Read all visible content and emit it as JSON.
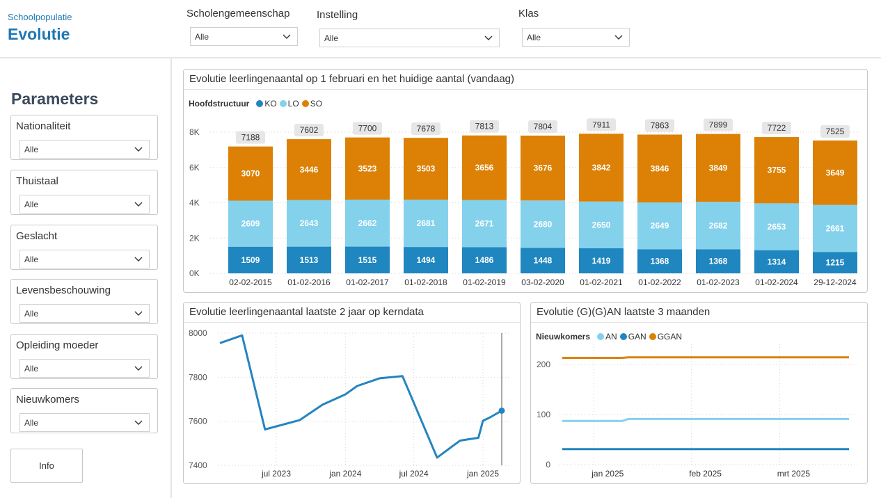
{
  "header": {
    "subtitle": "Schoolpopulatie",
    "title": "Evolutie",
    "filters": [
      {
        "label": "Scholengemeenschap",
        "value": "Alle"
      },
      {
        "label": "Instelling",
        "value": "Alle"
      },
      {
        "label": "Klas",
        "value": "Alle"
      }
    ]
  },
  "sidebar": {
    "title": "Parameters",
    "slicers": [
      {
        "label": "Nationaliteit",
        "value": "Alle"
      },
      {
        "label": "Thuistaal",
        "value": "Alle"
      },
      {
        "label": "Geslacht",
        "value": "Alle"
      },
      {
        "label": "Levensbeschouwing",
        "value": "Alle"
      },
      {
        "label": "Opleiding moeder",
        "value": "Alle"
      },
      {
        "label": "Nieuwkomers",
        "value": "Alle"
      }
    ],
    "info_label": "Info"
  },
  "colors": {
    "KO": "#1f86c0",
    "LO": "#84d1ec",
    "SO": "#dc8105",
    "line": "#2484c1"
  },
  "chart_data": [
    {
      "type": "bar",
      "stacked": true,
      "title": "Evolutie leerlingenaantal op 1 februari en het huidige aantal (vandaag)",
      "legend_title": "Hoofdstructuur",
      "categories": [
        "02-02-2015",
        "01-02-2016",
        "01-02-2017",
        "01-02-2018",
        "01-02-2019",
        "03-02-2020",
        "01-02-2021",
        "01-02-2022",
        "01-02-2023",
        "01-02-2024",
        "29-12-2024"
      ],
      "series": [
        {
          "name": "KO",
          "values": [
            1509,
            1513,
            1515,
            1494,
            1486,
            1448,
            1419,
            1368,
            1368,
            1314,
            1215
          ]
        },
        {
          "name": "LO",
          "values": [
            2609,
            2643,
            2662,
            2681,
            2671,
            2680,
            2650,
            2649,
            2682,
            2653,
            2661
          ]
        },
        {
          "name": "SO",
          "values": [
            3070,
            3446,
            3523,
            3503,
            3656,
            3676,
            3842,
            3846,
            3849,
            3755,
            3649
          ]
        }
      ],
      "totals": [
        7188,
        7602,
        7700,
        7678,
        7813,
        7804,
        7911,
        7863,
        7899,
        7722,
        7525
      ],
      "yticks": [
        "0K",
        "2K",
        "4K",
        "6K",
        "8K"
      ],
      "ylim": [
        0,
        8000
      ],
      "grid": true
    },
    {
      "type": "line",
      "title": "Evolutie leerlingenaantal laatste 2 jaar op kerndata",
      "x": [
        "2023-02-01",
        "2023-04-01",
        "2023-06-01",
        "2023-09-01",
        "2023-11-01",
        "2024-01-01",
        "2024-02-01",
        "2024-04-01",
        "2024-06-01",
        "2024-09-01",
        "2024-11-01",
        "2024-12-20",
        "2025-01-01",
        "2025-01-20",
        "2025-02-20"
      ],
      "y": [
        7955,
        7990,
        7563,
        7605,
        7675,
        7722,
        7760,
        7795,
        7805,
        7435,
        7512,
        7525,
        7602,
        7618,
        7648
      ],
      "xticks": [
        "jul 2023",
        "jan 2024",
        "jul 2024",
        "jan 2025"
      ],
      "yticks": [
        "7400",
        "7600",
        "7800",
        "8000"
      ],
      "ylim": [
        7400,
        8000
      ],
      "grid": true
    },
    {
      "type": "line",
      "title": "Evolutie (G)(G)AN laatste 3 maanden",
      "legend_title": "Nieuwkomers",
      "x": [
        "2024-12-22",
        "2025-01-10",
        "2025-01-12",
        "2025-03-23"
      ],
      "series": [
        {
          "name": "AN",
          "values": [
            87,
            87,
            91,
            91
          ]
        },
        {
          "name": "GAN",
          "values": [
            31,
            31,
            31,
            31
          ]
        },
        {
          "name": "GGAN",
          "values": [
            213,
            213,
            214,
            214
          ]
        }
      ],
      "xticks": [
        "jan 2025",
        "feb 2025",
        "mrt 2025"
      ],
      "yticks": [
        "0",
        "100",
        "200"
      ],
      "ylim": [
        0,
        240
      ],
      "grid": true
    }
  ]
}
